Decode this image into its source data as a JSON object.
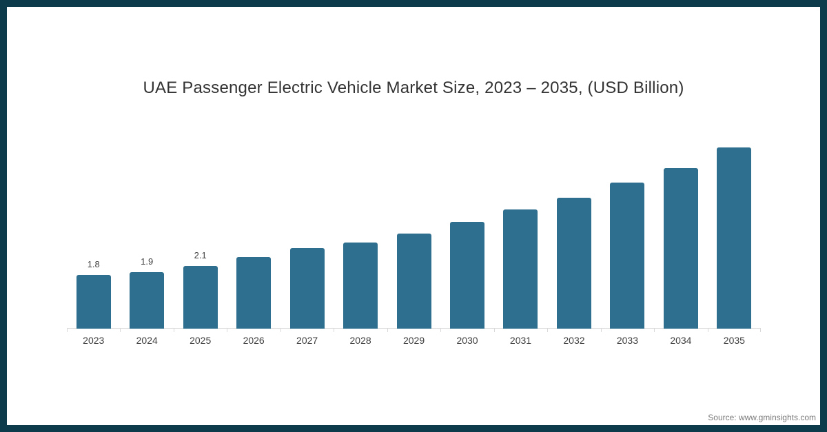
{
  "frame": {
    "border_color": "#0d3b4b",
    "background_color": "#ffffff"
  },
  "source": "Source: www.gminsights.com",
  "chart_data": {
    "type": "bar",
    "title": "UAE Passenger Electric Vehicle Market Size, 2023 – 2035, (USD Billion)",
    "xlabel": "",
    "ylabel": "",
    "categories": [
      "2023",
      "2024",
      "2025",
      "2026",
      "2027",
      "2028",
      "2029",
      "2030",
      "2031",
      "2032",
      "2033",
      "2034",
      "2035"
    ],
    "values": [
      1.8,
      1.9,
      2.1,
      2.4,
      2.7,
      2.9,
      3.2,
      3.6,
      4.0,
      4.4,
      4.9,
      5.4,
      6.1
    ],
    "data_labels": [
      "1.8",
      "1.9",
      "2.1",
      "",
      "",
      "",
      "",
      "",
      "",
      "",
      "",
      "",
      ""
    ],
    "ylim": [
      0,
      7
    ],
    "grid": false,
    "legend": false,
    "bar_color": "#2e6e8e",
    "axis_color": "#d9d9d9",
    "data_label_color": "#404040",
    "tick_label_color": "#3d3d3d",
    "title_color": "#333333",
    "source_color": "#7a7a7a"
  }
}
